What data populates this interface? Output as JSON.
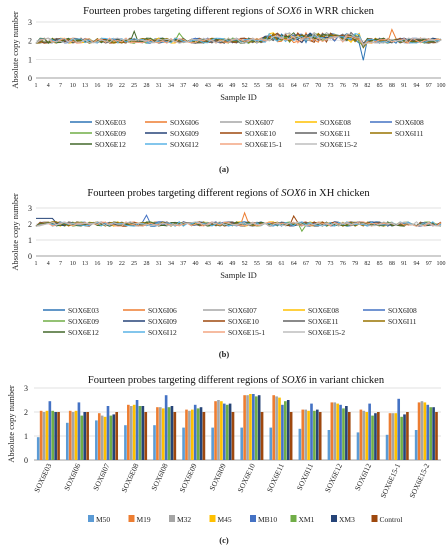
{
  "chart_data": [
    {
      "type": "line",
      "panel_label": "(a)",
      "title": "Fourteen probes targeting different regions of SOX6 in WRR chicken",
      "title_parts": {
        "pre": "Fourteen probes targeting different regions of ",
        "ital": "SOX6",
        "post": " in WRR chicken"
      },
      "xlabel": "Sample ID",
      "ylabel": "Absolute copy number",
      "ylim": [
        0,
        3
      ],
      "yticks": [
        "0",
        "1",
        "2",
        "3"
      ],
      "xtick_labels": [
        "1",
        "4",
        "7",
        "10",
        "13",
        "16",
        "19",
        "22",
        "25",
        "28",
        "31",
        "34",
        "37",
        "40",
        "43",
        "46",
        "49",
        "52",
        "55",
        "58",
        "61",
        "64",
        "67",
        "70",
        "73",
        "76",
        "79",
        "82",
        "85",
        "88",
        "91",
        "94",
        "97",
        "100"
      ],
      "grid": true,
      "legend_position": "bottom",
      "series": [
        {
          "name": "SOX6E03",
          "color": "#2e75b6"
        },
        {
          "name": "SOX6I06",
          "color": "#ed7d31"
        },
        {
          "name": "SOX6I07",
          "color": "#a5a5a5"
        },
        {
          "name": "SOX6E08",
          "color": "#ffc000"
        },
        {
          "name": "SOX6I08",
          "color": "#4472c4"
        },
        {
          "name": "SOX6E09",
          "color": "#70ad47"
        },
        {
          "name": "SOX6I09",
          "color": "#264478"
        },
        {
          "name": "SOX6E10",
          "color": "#9e480e"
        },
        {
          "name": "SOX6E11",
          "color": "#636363"
        },
        {
          "name": "SOX6I11",
          "color": "#997300"
        },
        {
          "name": "SOX6E12",
          "color": "#43682b"
        },
        {
          "name": "SOX6I12",
          "color": "#5ab4e6"
        },
        {
          "name": "SOX6E15-1",
          "color": "#f4a582"
        },
        {
          "name": "SOX6E15-2",
          "color": "#bdbdbd"
        }
      ]
    },
    {
      "type": "line",
      "panel_label": "(b)",
      "title": "Fourteen probes targeting different regions of SOX6 in XH chicken",
      "title_parts": {
        "pre": "Fourteen probes targeting different regions of ",
        "ital": "SOX6",
        "post": " in XH chicken"
      },
      "xlabel": "Sample ID",
      "ylabel": "Absolute copy number",
      "ylim": [
        0,
        3
      ],
      "yticks": [
        "0",
        "1",
        "2",
        "3"
      ],
      "xtick_labels": [
        "1",
        "4",
        "7",
        "10",
        "13",
        "16",
        "19",
        "22",
        "25",
        "28",
        "31",
        "34",
        "37",
        "40",
        "43",
        "46",
        "49",
        "52",
        "55",
        "58",
        "61",
        "64",
        "67",
        "70",
        "73",
        "76",
        "79",
        "82",
        "85",
        "88",
        "91",
        "94",
        "97",
        "100"
      ],
      "grid": true,
      "legend_position": "bottom",
      "series": [
        {
          "name": "SOX6E03",
          "color": "#2e75b6"
        },
        {
          "name": "SOX6I06",
          "color": "#ed7d31"
        },
        {
          "name": "SOX6I07",
          "color": "#a5a5a5"
        },
        {
          "name": "SOX6E08",
          "color": "#ffc000"
        },
        {
          "name": "SOX6I08",
          "color": "#4472c4"
        },
        {
          "name": "SOX6E09",
          "color": "#70ad47"
        },
        {
          "name": "SOX6I09",
          "color": "#264478"
        },
        {
          "name": "SOX6E10",
          "color": "#9e480e"
        },
        {
          "name": "SOX6E11",
          "color": "#636363"
        },
        {
          "name": "SOX6I11",
          "color": "#997300"
        },
        {
          "name": "SOX6E12",
          "color": "#43682b"
        },
        {
          "name": "SOX6I12",
          "color": "#5ab4e6"
        },
        {
          "name": "SOX6E15-1",
          "color": "#f4a582"
        },
        {
          "name": "SOX6E15-2",
          "color": "#bdbdbd"
        }
      ]
    },
    {
      "type": "bar",
      "panel_label": "(c)",
      "title": "Fourteen probes targeting different regions of SOX6 in variant chicken",
      "title_parts": {
        "pre": "Fourteen probes targeting different regions of ",
        "ital": "SOX6",
        "post": " in variant chicken"
      },
      "xlabel": "",
      "ylabel": "Absolute copy number",
      "ylim": [
        0,
        3
      ],
      "yticks": [
        "0",
        "1",
        "2",
        "3"
      ],
      "grid": true,
      "legend_position": "bottom",
      "categories": [
        "SOX6E03",
        "SOX6I06",
        "SOX6I07",
        "SOX6E08",
        "SOX6I08",
        "SOX6E09",
        "SOX6I09",
        "SOX6E10",
        "SOX6E11",
        "SOX6I11",
        "SOX6E12",
        "SOX6I12",
        "SOX6E15-1",
        "SOX6E15-2"
      ],
      "series": [
        {
          "name": "M50",
          "color": "#5b9bd5",
          "values": [
            0.95,
            1.55,
            1.65,
            1.45,
            1.45,
            1.35,
            1.35,
            1.35,
            1.35,
            1.3,
            1.25,
            1.15,
            1.05,
            1.25
          ]
        },
        {
          "name": "M19",
          "color": "#ed7d31",
          "values": [
            2.05,
            2.05,
            1.95,
            2.3,
            2.2,
            2.1,
            2.45,
            2.7,
            2.7,
            2.1,
            2.4,
            2.1,
            1.95,
            2.4
          ]
        },
        {
          "name": "M32",
          "color": "#a5a5a5",
          "values": [
            2.0,
            2.0,
            1.85,
            2.25,
            2.2,
            2.05,
            2.5,
            2.7,
            2.65,
            2.1,
            2.4,
            2.05,
            1.95,
            2.45
          ]
        },
        {
          "name": "M45",
          "color": "#ffc000",
          "values": [
            2.05,
            2.05,
            1.8,
            2.3,
            2.15,
            2.1,
            2.45,
            2.75,
            2.6,
            2.05,
            2.35,
            2.0,
            1.95,
            2.4
          ]
        },
        {
          "name": "MB10",
          "color": "#4472c4",
          "values": [
            2.45,
            2.4,
            2.25,
            2.5,
            2.7,
            2.3,
            2.35,
            2.75,
            2.3,
            2.35,
            2.3,
            2.35,
            2.55,
            2.3
          ]
        },
        {
          "name": "XM1",
          "color": "#70ad47",
          "values": [
            2.05,
            1.85,
            1.85,
            2.25,
            2.2,
            2.15,
            2.3,
            2.65,
            2.45,
            2.05,
            2.15,
            1.85,
            1.8,
            2.2
          ]
        },
        {
          "name": "XM3",
          "color": "#264478",
          "values": [
            2.0,
            2.0,
            1.9,
            2.25,
            2.25,
            2.2,
            2.35,
            2.7,
            2.5,
            2.1,
            2.25,
            1.95,
            1.9,
            2.2
          ]
        },
        {
          "name": "Control",
          "color": "#9e480e",
          "values": [
            2.0,
            2.0,
            2.0,
            2.0,
            2.0,
            2.0,
            2.0,
            2.0,
            2.0,
            2.0,
            2.0,
            2.0,
            2.0,
            2.0
          ]
        }
      ]
    }
  ]
}
